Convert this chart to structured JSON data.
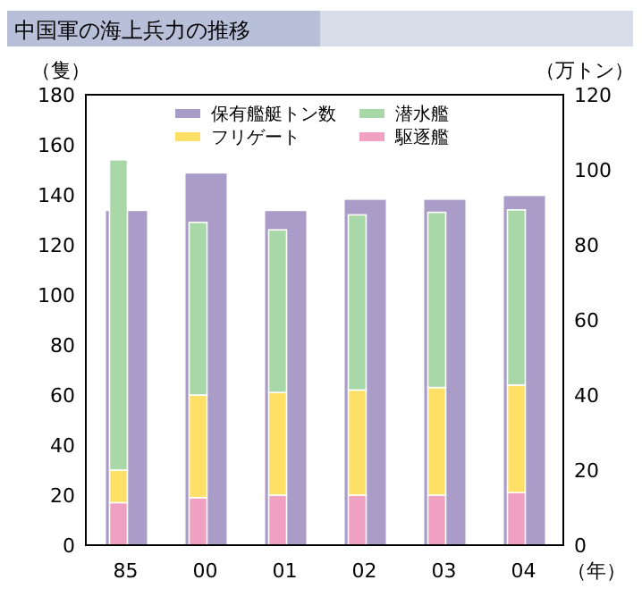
{
  "chart_data": {
    "type": "bar",
    "title": "中国軍の海上兵力の推移",
    "ylabel": "（隻）",
    "y2label": "（万トン）",
    "xlabel": "（年）",
    "categories": [
      "85",
      "00",
      "01",
      "02",
      "03",
      "04"
    ],
    "stacked": true,
    "legend": "top",
    "grid": false,
    "ylim": [
      0,
      180
    ],
    "yticks": [
      0,
      20,
      40,
      60,
      80,
      100,
      120,
      140,
      160,
      180
    ],
    "y2lim": [
      0,
      120
    ],
    "y2ticks": [
      0,
      20,
      40,
      60,
      80,
      100,
      120
    ],
    "series": [
      {
        "name": "保有艦艇トン数",
        "color": "#a99cc8",
        "axis": "y2",
        "values": [
          89,
          99,
          89,
          92,
          92,
          93
        ]
      },
      {
        "name": "駆逐艦",
        "color": "#f0a0c0",
        "values": [
          17,
          19,
          20,
          20,
          20,
          21
        ]
      },
      {
        "name": "フリゲート",
        "color": "#ffe066",
        "values": [
          13,
          41,
          41,
          42,
          43,
          43
        ]
      },
      {
        "name": "潜水艦",
        "color": "#a8d8a8",
        "values": [
          124,
          69,
          65,
          70,
          70,
          70
        ]
      }
    ]
  }
}
